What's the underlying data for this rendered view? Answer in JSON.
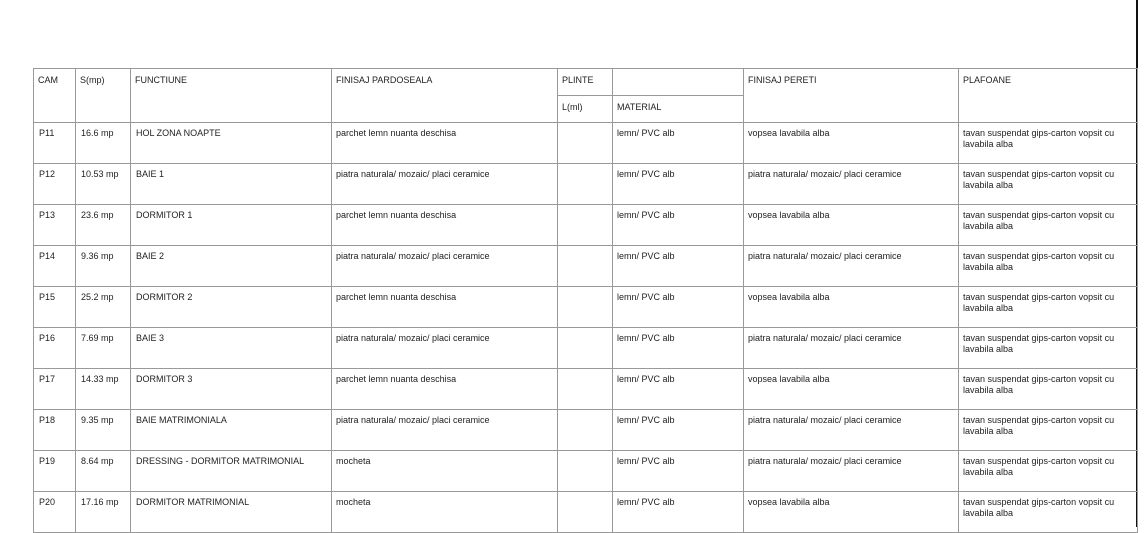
{
  "header": {
    "cam": "CAM",
    "s": "S(mp)",
    "functiune": "FUNCTIUNE",
    "pardoseala": "FINISAJ PARDOSEALA",
    "plinte": "PLINTE",
    "lml": "L(ml)",
    "material": "MATERIAL",
    "pereti": "FINISAJ PERETI",
    "plafoane": "PLAFOANE"
  },
  "rows": [
    {
      "cam": "P11",
      "s": "16.6 mp",
      "functiune": "HOL ZONA NOAPTE",
      "pardoseala": "parchet lemn nuanta deschisa",
      "lml": "",
      "material": "lemn/ PVC alb",
      "pereti": "vopsea lavabila alba",
      "plafoane": "tavan suspendat gips-carton vopsit cu lavabila alba"
    },
    {
      "cam": "P12",
      "s": "10.53 mp",
      "functiune": "BAIE 1",
      "pardoseala": "piatra naturala/ mozaic/ placi ceramice",
      "lml": "",
      "material": "lemn/ PVC alb",
      "pereti": "piatra naturala/ mozaic/ placi ceramice",
      "plafoane": "tavan suspendat gips-carton vopsit cu lavabila alba"
    },
    {
      "cam": "P13",
      "s": "23.6 mp",
      "functiune": "DORMITOR 1",
      "pardoseala": "parchet lemn nuanta deschisa",
      "lml": "",
      "material": "lemn/ PVC alb",
      "pereti": "vopsea lavabila alba",
      "plafoane": "tavan suspendat gips-carton vopsit cu lavabila alba"
    },
    {
      "cam": "P14",
      "s": "9.36 mp",
      "functiune": "BAIE 2",
      "pardoseala": "piatra naturala/ mozaic/ placi ceramice",
      "lml": "",
      "material": "lemn/ PVC alb",
      "pereti": "piatra naturala/ mozaic/ placi ceramice",
      "plafoane": "tavan suspendat gips-carton vopsit cu lavabila alba"
    },
    {
      "cam": "P15",
      "s": "25.2 mp",
      "functiune": "DORMITOR 2",
      "pardoseala": "parchet lemn nuanta deschisa",
      "lml": "",
      "material": "lemn/ PVC alb",
      "pereti": "vopsea lavabila alba",
      "plafoane": "tavan suspendat gips-carton vopsit cu lavabila alba"
    },
    {
      "cam": "P16",
      "s": "7.69 mp",
      "functiune": "BAIE 3",
      "pardoseala": "piatra naturala/ mozaic/ placi ceramice",
      "lml": "",
      "material": "lemn/ PVC alb",
      "pereti": "piatra naturala/ mozaic/ placi ceramice",
      "plafoane": "tavan suspendat gips-carton vopsit cu lavabila alba"
    },
    {
      "cam": "P17",
      "s": "14.33 mp",
      "functiune": "DORMITOR 3",
      "pardoseala": "parchet lemn nuanta deschisa",
      "lml": "",
      "material": "lemn/ PVC alb",
      "pereti": "vopsea lavabila alba",
      "plafoane": "tavan suspendat gips-carton vopsit cu lavabila alba"
    },
    {
      "cam": "P18",
      "s": "9.35 mp",
      "functiune": "BAIE MATRIMONIALA",
      "pardoseala": "piatra naturala/ mozaic/ placi ceramice",
      "lml": "",
      "material": "lemn/ PVC alb",
      "pereti": "piatra naturala/ mozaic/ placi ceramice",
      "plafoane": "tavan suspendat gips-carton vopsit cu lavabila alba"
    },
    {
      "cam": "P19",
      "s": "8.64 mp",
      "functiune": "DRESSING - DORMITOR MATRIMONIAL",
      "pardoseala": "mocheta",
      "lml": "",
      "material": "lemn/ PVC alb",
      "pereti": "piatra naturala/ mozaic/ placi ceramice",
      "plafoane": "tavan suspendat gips-carton vopsit cu lavabila alba"
    },
    {
      "cam": "P20",
      "s": "17.16 mp",
      "functiune": "DORMITOR MATRIMONIAL",
      "pardoseala": "mocheta",
      "lml": "",
      "material": "lemn/ PVC alb",
      "pereti": "vopsea lavabila alba",
      "plafoane": "tavan suspendat gips-carton vopsit cu lavabila alba"
    }
  ]
}
